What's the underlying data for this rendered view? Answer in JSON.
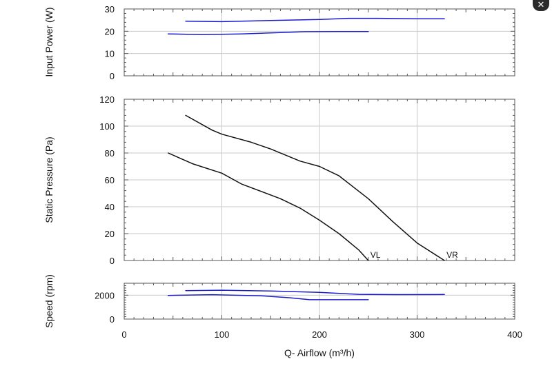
{
  "close_button": {
    "glyph": "✕"
  },
  "colors": {
    "power_speed": "#1a1acc",
    "pressure": "#111111",
    "frame": "#555555",
    "grid": "#c8c8c8"
  },
  "chart_data": [
    {
      "type": "line",
      "ylabel": "Input Power (W)",
      "xlim": [
        0,
        400
      ],
      "ylim": [
        0,
        30
      ],
      "yticks": [
        0,
        10,
        20,
        30
      ],
      "series": [
        {
          "name": "VR",
          "x": [
            63,
            100,
            150,
            200,
            230,
            260,
            300,
            328
          ],
          "y": [
            24.5,
            24.3,
            24.8,
            25.3,
            25.8,
            25.8,
            25.6,
            25.6
          ]
        },
        {
          "name": "VL",
          "x": [
            45,
            80,
            120,
            160,
            185,
            220,
            250
          ],
          "y": [
            18.8,
            18.5,
            18.8,
            19.4,
            19.8,
            19.9,
            19.9
          ]
        }
      ]
    },
    {
      "type": "line",
      "ylabel": "Static Pressure (Pa)",
      "xlim": [
        0,
        400
      ],
      "ylim": [
        0,
        120
      ],
      "yticks": [
        0,
        20,
        40,
        60,
        80,
        100,
        120
      ],
      "series": [
        {
          "name": "VR",
          "label": "VR",
          "x": [
            63,
            90,
            100,
            130,
            150,
            180,
            200,
            220,
            250,
            275,
            300,
            328
          ],
          "y": [
            108,
            97,
            94,
            88,
            83,
            74,
            70,
            63,
            46,
            29,
            13,
            0
          ]
        },
        {
          "name": "VL",
          "label": "VL",
          "x": [
            45,
            70,
            100,
            120,
            160,
            180,
            200,
            220,
            240,
            250
          ],
          "y": [
            80,
            72,
            65,
            57,
            46,
            39,
            30,
            20,
            8,
            0
          ]
        }
      ]
    },
    {
      "type": "line",
      "ylabel": "Speed (rpm)",
      "xlabel": "Q- Airflow (m³/h)",
      "xlim": [
        0,
        400
      ],
      "ylim": [
        0,
        3000
      ],
      "yticks": [
        0,
        2000
      ],
      "xticks": [
        0,
        100,
        200,
        300,
        400
      ],
      "series": [
        {
          "name": "VR",
          "x": [
            63,
            100,
            150,
            200,
            240,
            280,
            328
          ],
          "y": [
            2380,
            2420,
            2350,
            2230,
            2070,
            2050,
            2060
          ]
        },
        {
          "name": "VL",
          "x": [
            45,
            90,
            140,
            170,
            190,
            220,
            250
          ],
          "y": [
            1980,
            2040,
            1950,
            1780,
            1620,
            1620,
            1620
          ]
        }
      ]
    }
  ]
}
